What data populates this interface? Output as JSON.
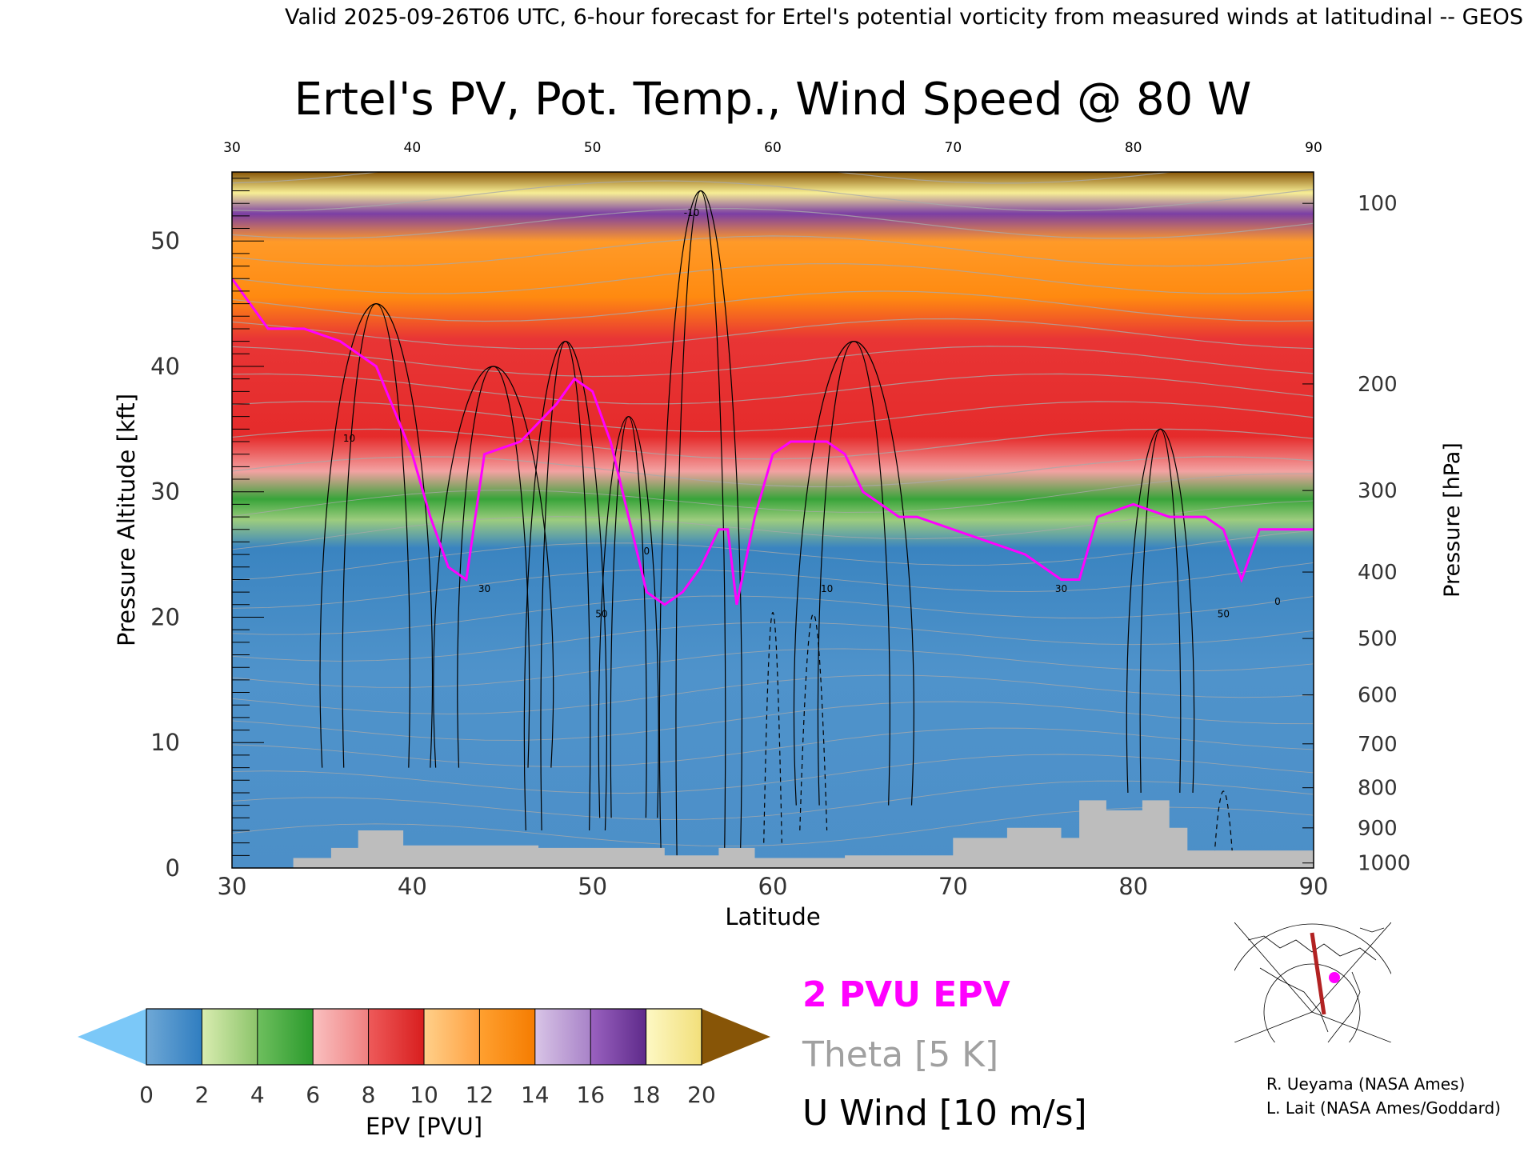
{
  "header": {
    "valid_line": "Valid 2025-09-26T06 UTC, 6-hour forecast for Ertel's potential vorticity from measured winds at latitudinal -- GEOS"
  },
  "chart_data": {
    "type": "heatmap",
    "title": "Ertel's PV, Pot. Temp., Wind Speed @ 80 W",
    "xlabel": "Latitude",
    "ylabel": "Pressure Altitude [kft]",
    "ylabel_right": "Pressure [hPa]",
    "xlim": [
      30,
      90
    ],
    "ylim": [
      0,
      55.5
    ],
    "x_ticks": [
      "30",
      "40",
      "50",
      "60",
      "70",
      "80",
      "90"
    ],
    "y_ticks": [
      {
        "value": 0,
        "label": "0"
      },
      {
        "value": 10,
        "label": "10"
      },
      {
        "value": 20,
        "label": "20"
      },
      {
        "value": 30,
        "label": "30"
      },
      {
        "value": 40,
        "label": "40"
      },
      {
        "value": 50,
        "label": "50"
      }
    ],
    "pressure_ticks": [
      {
        "alt": 53.0,
        "label": "100"
      },
      {
        "alt": 38.6,
        "label": "200"
      },
      {
        "alt": 30.1,
        "label": "300"
      },
      {
        "alt": 23.6,
        "label": "400"
      },
      {
        "alt": 18.3,
        "label": "500"
      },
      {
        "alt": 13.8,
        "label": "600"
      },
      {
        "alt": 9.9,
        "label": "700"
      },
      {
        "alt": 6.4,
        "label": "800"
      },
      {
        "alt": 3.2,
        "label": "900"
      },
      {
        "alt": 0.4,
        "label": "1000"
      }
    ],
    "tropopause_2pvu_kft": [
      [
        30,
        47
      ],
      [
        32,
        43
      ],
      [
        34,
        43
      ],
      [
        36,
        42
      ],
      [
        38,
        40
      ],
      [
        40,
        33
      ],
      [
        41,
        28
      ],
      [
        42,
        24
      ],
      [
        43,
        23
      ],
      [
        44,
        33
      ],
      [
        46,
        34
      ],
      [
        48,
        37
      ],
      [
        49,
        39
      ],
      [
        50,
        38
      ],
      [
        51,
        34
      ],
      [
        52,
        28
      ],
      [
        53,
        22
      ],
      [
        54,
        21
      ],
      [
        55,
        22
      ],
      [
        56,
        24
      ],
      [
        57,
        27
      ],
      [
        57.5,
        27
      ],
      [
        58,
        21
      ],
      [
        59,
        28
      ],
      [
        60,
        33
      ],
      [
        61,
        34
      ],
      [
        62,
        34
      ],
      [
        63,
        34
      ],
      [
        64,
        33
      ],
      [
        65,
        30
      ],
      [
        66,
        29
      ],
      [
        67,
        28
      ],
      [
        68,
        28
      ],
      [
        70,
        27
      ],
      [
        72,
        26
      ],
      [
        74,
        25
      ],
      [
        76,
        23
      ],
      [
        77,
        23
      ],
      [
        78,
        28
      ],
      [
        80,
        29
      ],
      [
        82,
        28
      ],
      [
        84,
        28
      ],
      [
        85,
        27
      ],
      [
        86,
        23
      ],
      [
        87,
        27
      ],
      [
        90,
        27
      ]
    ],
    "terrain_kft": [
      [
        30,
        0
      ],
      [
        33.4,
        0
      ],
      [
        33.4,
        0.8
      ],
      [
        35.5,
        0.8
      ],
      [
        35.5,
        1.6
      ],
      [
        37,
        1.6
      ],
      [
        37,
        3.0
      ],
      [
        39.5,
        3.0
      ],
      [
        39.5,
        1.8
      ],
      [
        47,
        1.8
      ],
      [
        47,
        1.6
      ],
      [
        54,
        1.6
      ],
      [
        54,
        1.0
      ],
      [
        57,
        1.0
      ],
      [
        57,
        1.6
      ],
      [
        59,
        1.6
      ],
      [
        59,
        0.8
      ],
      [
        64,
        0.8
      ],
      [
        64,
        1.0
      ],
      [
        70,
        1.0
      ],
      [
        70,
        2.4
      ],
      [
        73,
        2.4
      ],
      [
        73,
        3.2
      ],
      [
        76,
        3.2
      ],
      [
        76,
        2.4
      ],
      [
        77,
        2.4
      ],
      [
        77,
        5.4
      ],
      [
        78.5,
        5.4
      ],
      [
        78.5,
        4.6
      ],
      [
        80.5,
        4.6
      ],
      [
        80.5,
        5.4
      ],
      [
        82,
        5.4
      ],
      [
        82,
        3.2
      ],
      [
        83,
        3.2
      ],
      [
        83,
        1.4
      ],
      [
        90,
        1.4
      ]
    ],
    "wind_contour_labels": [
      "10",
      "30",
      "50",
      "0",
      "-10"
    ],
    "colorbar": {
      "label": "EPV [PVU]",
      "ticks": [
        "0",
        "2",
        "4",
        "6",
        "8",
        "10",
        "12",
        "14",
        "16",
        "18",
        "20"
      ],
      "colors": [
        "#2f7dc0",
        "#9ccc7e",
        "#38a43a",
        "#f7a5a5",
        "#e52b2b",
        "#ffb060",
        "#ff8a10",
        "#c3a6d8",
        "#7b3ea4",
        "#f7ee95",
        "#d9a43f"
      ],
      "under_color": "#7bc8f8",
      "over_color": "#875507"
    },
    "legend": [
      {
        "label": "2 PVU EPV",
        "color": "#ff00ff"
      },
      {
        "label": "Theta [5 K]",
        "color": "#a0a0a0"
      },
      {
        "label": "U Wind [10 m/s]",
        "color": "#000000"
      }
    ]
  },
  "credits": {
    "line1": "R. Ueyama (NASA Ames)",
    "line2": "L. Lait (NASA Ames/Goddard)"
  }
}
